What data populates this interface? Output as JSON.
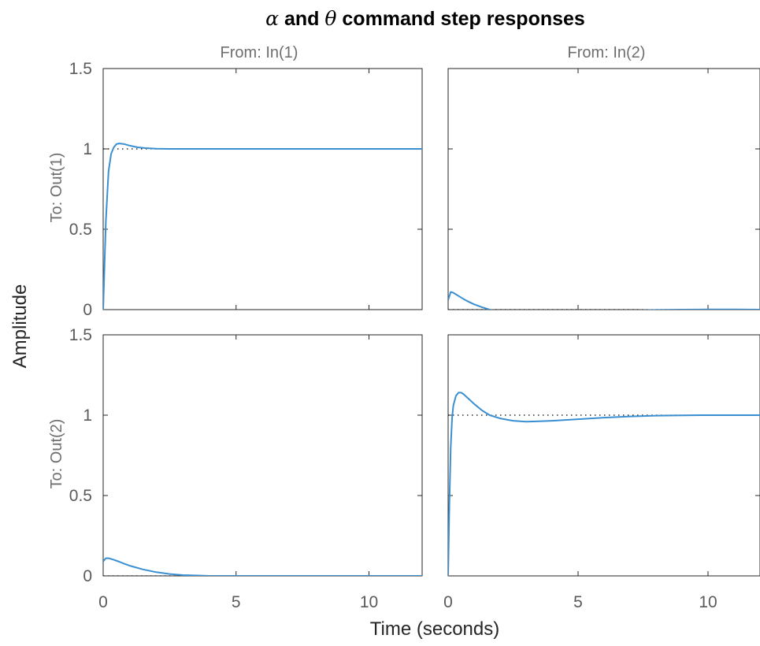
{
  "title": {
    "alpha_symbol": "α",
    "part1": " and ",
    "theta_symbol": "θ",
    "part2": " command step responses"
  },
  "xlabel": "Time (seconds)",
  "ylabel": "Amplitude",
  "column_labels": [
    "From: In(1)",
    "From: In(2)"
  ],
  "row_labels": [
    "To: Out(1)",
    "To: Out(2)"
  ],
  "x_ticks": [
    "0",
    "5",
    "10"
  ],
  "y_ticks": [
    "0",
    "0.5",
    "1",
    "1.5"
  ],
  "colors": {
    "response": "#3a8fd1",
    "reference": "#000000",
    "axes": "#262626"
  },
  "chart_data": {
    "type": "line",
    "title": "α and θ command step responses",
    "xlabel": "Time (seconds)",
    "ylabel": "Amplitude",
    "xlim": [
      0,
      12
    ],
    "ylim": [
      0,
      1.5
    ],
    "x_ticks": [
      0,
      5,
      10
    ],
    "y_ticks": [
      0,
      0.5,
      1,
      1.5
    ],
    "grid": false,
    "subplots": [
      {
        "row": 0,
        "col": 0,
        "from": "In(1)",
        "to": "Out(1)",
        "steady_state": 1,
        "x": [
          0,
          0.1,
          0.2,
          0.3,
          0.4,
          0.5,
          0.6,
          0.8,
          1.0,
          1.3,
          1.6,
          2.0,
          2.5,
          3,
          4,
          5,
          6,
          8,
          10,
          12
        ],
        "y": [
          0,
          0.55,
          0.86,
          0.97,
          1.01,
          1.03,
          1.034,
          1.03,
          1.02,
          1.01,
          1.005,
          1.001,
          1.0,
          1.0,
          1.0,
          1.0,
          1.0,
          1.0,
          1.0,
          1.0
        ]
      },
      {
        "row": 0,
        "col": 1,
        "from": "In(2)",
        "to": "Out(1)",
        "steady_state": 0,
        "x": [
          0,
          0.1,
          0.2,
          0.4,
          0.6,
          0.8,
          1.0,
          1.3,
          1.6,
          2.0,
          2.5,
          3,
          4,
          5,
          6,
          7,
          8,
          9,
          10,
          11,
          12
        ],
        "y": [
          0.06,
          0.11,
          0.105,
          0.085,
          0.065,
          0.048,
          0.033,
          0.015,
          0.0,
          -0.015,
          -0.025,
          -0.028,
          -0.025,
          -0.018,
          -0.012,
          -0.006,
          -0.002,
          0.0,
          0.001,
          0.001,
          0.0
        ]
      },
      {
        "row": 1,
        "col": 0,
        "from": "In(1)",
        "to": "Out(2)",
        "steady_state": 0,
        "x": [
          0,
          0.1,
          0.2,
          0.4,
          0.6,
          0.8,
          1.0,
          1.5,
          2.0,
          2.5,
          3,
          4,
          5,
          6,
          8,
          10,
          12
        ],
        "y": [
          0.09,
          0.11,
          0.11,
          0.1,
          0.088,
          0.075,
          0.063,
          0.04,
          0.023,
          0.012,
          0.005,
          0.0,
          0.0,
          0.0,
          0.0,
          0.0,
          0.0
        ]
      },
      {
        "row": 1,
        "col": 1,
        "from": "In(2)",
        "to": "Out(2)",
        "steady_state": 1,
        "x": [
          0,
          0.05,
          0.1,
          0.15,
          0.2,
          0.3,
          0.4,
          0.5,
          0.6,
          0.8,
          1.0,
          1.3,
          1.6,
          2.0,
          2.5,
          3.0,
          3.5,
          4,
          5,
          6,
          7,
          8,
          9,
          10,
          11,
          12
        ],
        "y": [
          0,
          0.45,
          0.8,
          0.98,
          1.06,
          1.12,
          1.14,
          1.14,
          1.13,
          1.1,
          1.07,
          1.03,
          1.0,
          0.98,
          0.965,
          0.96,
          0.962,
          0.965,
          0.975,
          0.985,
          0.992,
          0.997,
          0.999,
          1.0,
          1.0,
          1.0
        ]
      }
    ]
  }
}
